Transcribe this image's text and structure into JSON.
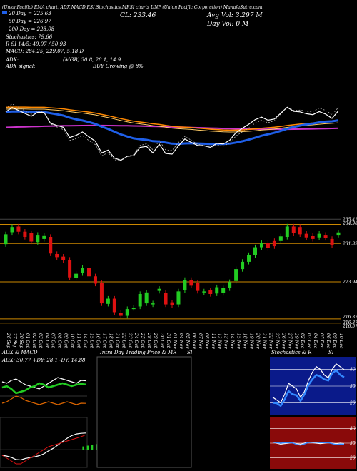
{
  "header": {
    "ticker_line": "(UnionPacific) EMA chart, ADX,MACD,RSI,Stochastics,MRSI charts UNP (Union Pacific Corporation) MunafaSutra.com",
    "ema20": "20 Day = 225.63",
    "ema50": "50 Day = 226.97",
    "ema200": "200 Day = 228.08",
    "stoch": "Stochastics: 79.66",
    "rsi": "R SI 14/5: 49.07 / 50.93",
    "macd": "MACD: 284.25, 229.07, 5.18 D",
    "adx": "ADX:",
    "adx_signal": "ADX signal:",
    "mgb": "(MGB) 30.8, 28.1, 14.9",
    "buy": "BUY Growing @ 8%",
    "cl": "CL: 233.46",
    "avg_vol": "Avg Vol: 3.297 M",
    "day_vol": "Day Vol: 0 M"
  },
  "colors": {
    "up": "#22cc22",
    "down": "#dd1111",
    "ema20": "#1f5fe8",
    "ema50": "#ff8800",
    "ema200": "#cc33cc",
    "price_line": "#ffffff",
    "level_line": "#cc8800"
  },
  "chart_data": [
    {
      "type": "candlestick",
      "title": "UNP daily",
      "dates": [
        "26 Sep",
        "27 Sep",
        "30 Sep",
        "01 Oct",
        "02 Oct",
        "03 Oct",
        "04 Oct",
        "07 Oct",
        "08 Oct",
        "09 Oct",
        "10 Oct",
        "11 Oct",
        "14 Oct",
        "15 Oct",
        "16 Oct",
        "17 Oct",
        "18 Oct",
        "21 Oct",
        "22 Oct",
        "23 Oct",
        "24 Oct",
        "25 Oct",
        "28 Oct",
        "29 Oct",
        "30 Oct",
        "31 Oct",
        "01 Nov",
        "04 Nov",
        "05 Nov",
        "06 Nov",
        "07 Nov",
        "08 Nov",
        "11 Nov",
        "12 Nov",
        "13 Nov",
        "14 Nov",
        "15 Nov",
        "18 Nov",
        "19 Nov",
        "20 Nov",
        "21 Nov",
        "22 Nov",
        "25 Nov",
        "26 Nov",
        "27 Nov",
        "29 Nov",
        "02 Dec",
        "03 Dec",
        "04 Dec",
        "05 Dec",
        "06 Dec",
        "09 Dec",
        "10 Dec"
      ],
      "open": [
        231.2,
        233.5,
        234.6,
        233.6,
        233.3,
        231.6,
        232.2,
        232.6,
        229.3,
        228.8,
        228.2,
        224.7,
        225.6,
        226.6,
        225.0,
        223.7,
        219.7,
        220.7,
        218.0,
        217.4,
        218.9,
        219.2,
        219.8,
        219.6,
        222.2,
        221.8,
        220.0,
        219.6,
        222.3,
        224.3,
        223.7,
        221.9,
        222.3,
        221.7,
        221.8,
        222.7,
        224.1,
        226.4,
        227.8,
        229.1,
        230.6,
        231.4,
        231.8,
        231.8,
        232.6,
        234.6,
        234.5,
        233.2,
        232.8,
        232.5,
        233.0,
        232.2,
        233.0
      ],
      "close": [
        233.1,
        234.5,
        233.6,
        232.6,
        231.7,
        233.0,
        232.9,
        229.4,
        228.7,
        228.1,
        224.8,
        225.5,
        226.6,
        225.0,
        223.6,
        219.8,
        220.7,
        218.1,
        217.4,
        218.7,
        218.9,
        221.6,
        221.9,
        219.8,
        222.6,
        219.6,
        219.4,
        222.1,
        224.3,
        223.2,
        222.2,
        222.1,
        221.6,
        222.9,
        222.7,
        223.9,
        226.4,
        227.8,
        229.1,
        230.6,
        231.4,
        230.4,
        230.8,
        232.7,
        234.6,
        233.3,
        233.1,
        232.5,
        232.2,
        233.2,
        232.4,
        231.0,
        233.46
      ],
      "ylabels": [
        "235.41",
        "234.96",
        "231.32",
        "223.94",
        "216.37",
        "216.37",
        "216.57"
      ]
    },
    {
      "type": "line",
      "title": "ADX & MACD",
      "series": [
        {
          "name": "ADX: 30.77",
          "values": [
            30,
            29,
            31,
            32,
            30,
            28,
            27,
            26,
            25,
            27,
            29,
            31,
            33,
            32,
            31,
            30,
            29,
            31,
            30.77
          ]
        },
        {
          "name": "+DY: 28.1",
          "values": [
            26,
            27,
            25,
            22,
            23,
            24,
            26,
            27,
            29,
            28,
            26,
            27,
            28,
            29,
            28,
            27,
            28,
            28.5,
            28.1
          ]
        },
        {
          "name": "-DY: 14.88",
          "values": [
            15,
            16,
            18,
            20,
            19,
            17,
            16,
            15,
            14,
            15,
            16,
            15,
            14,
            15,
            16,
            15,
            14,
            15,
            14.88
          ]
        }
      ]
    },
    {
      "type": "line",
      "title": "Stochastics & RSI",
      "series": [
        {
          "name": "Stochastics",
          "values": [
            30,
            25,
            20,
            35,
            55,
            50,
            45,
            30,
            40,
            60,
            75,
            85,
            80,
            70,
            65,
            80,
            90,
            85,
            79.66
          ]
        },
        {
          "name": "RSI",
          "values": [
            52,
            50,
            48,
            49,
            50,
            51,
            49,
            48,
            50,
            52,
            51,
            50,
            49,
            50,
            51,
            50,
            49,
            50,
            49.07
          ]
        }
      ]
    }
  ],
  "panels": {
    "adx_title": "ADX & MACD",
    "adx_values": "ADX: 30.77 +DY: 28.1 -DY: 14.88",
    "intraday_title": "Intra Day Trading Price & MR",
    "intraday_si": "SI",
    "stoch_title": "Stochastics & R",
    "stoch_si": "SI",
    "stoch_levels": [
      "80",
      "50",
      "20"
    ],
    "rsi_levels": [
      "80",
      "50",
      "20"
    ]
  }
}
